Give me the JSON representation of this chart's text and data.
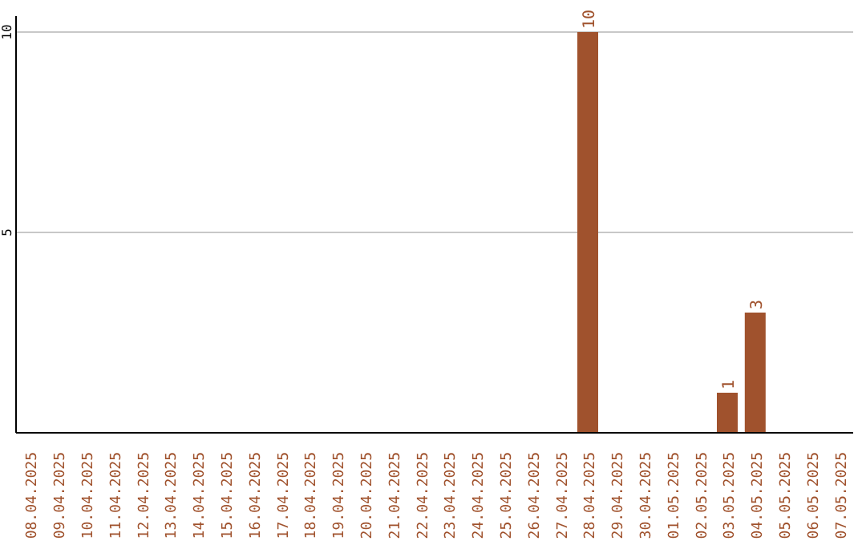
{
  "chart_data": {
    "type": "bar",
    "categories": [
      "08.04.2025",
      "09.04.2025",
      "10.04.2025",
      "11.04.2025",
      "12.04.2025",
      "13.04.2025",
      "14.04.2025",
      "15.04.2025",
      "16.04.2025",
      "17.04.2025",
      "18.04.2025",
      "19.04.2025",
      "20.04.2025",
      "21.04.2025",
      "22.04.2025",
      "23.04.2025",
      "24.04.2025",
      "25.04.2025",
      "26.04.2025",
      "27.04.2025",
      "28.04.2025",
      "29.04.2025",
      "30.04.2025",
      "01.05.2025",
      "02.05.2025",
      "03.05.2025",
      "04.05.2025",
      "05.05.2025",
      "06.05.2025",
      "07.05.2025"
    ],
    "values": [
      0,
      0,
      0,
      0,
      0,
      0,
      0,
      0,
      0,
      0,
      0,
      0,
      0,
      0,
      0,
      0,
      0,
      0,
      0,
      0,
      10,
      0,
      0,
      0,
      0,
      1,
      3,
      0,
      0,
      0
    ],
    "value_labels": [
      null,
      null,
      null,
      null,
      null,
      null,
      null,
      null,
      null,
      null,
      null,
      null,
      null,
      null,
      null,
      null,
      null,
      null,
      null,
      null,
      "10",
      null,
      null,
      null,
      null,
      "1",
      "3",
      null,
      null,
      null
    ],
    "color": "#a0522d",
    "ylim": [
      0,
      10.4
    ],
    "yticks": [
      5,
      10
    ],
    "grid": "y"
  }
}
